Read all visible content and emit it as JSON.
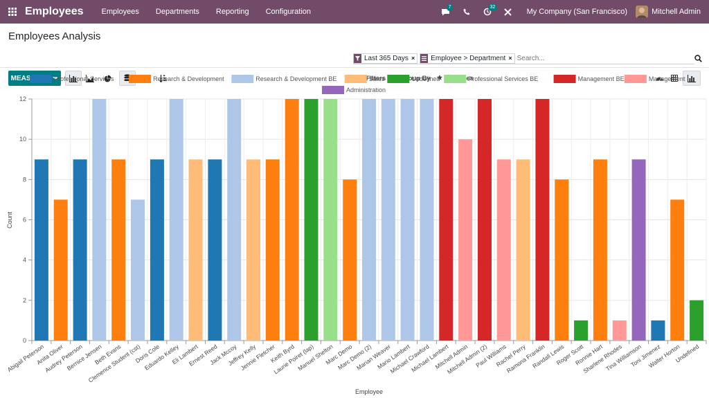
{
  "navbar": {
    "brand": "Employees",
    "menus": [
      "Employees",
      "Departments",
      "Reporting",
      "Configuration"
    ],
    "chat_badge": "7",
    "activity_badge": "32",
    "company": "My Company (San Francisco)",
    "user": "Mitchell Admin"
  },
  "control": {
    "title": "Employees Analysis",
    "facets": [
      "Last 365 Days",
      "Employee > Department"
    ],
    "search_placeholder": "Search...",
    "measures_label": "MEASURES",
    "filters_label": "Filters",
    "groupby_label": "Group By",
    "favorites_label": "Favorites"
  },
  "colors": {
    "brand": "#714b67",
    "accent": "#017e84"
  },
  "chart_data": {
    "type": "bar",
    "xlabel": "Employee",
    "ylabel": "Count",
    "ylim": [
      0,
      12
    ],
    "yticks": [
      0,
      2,
      4,
      6,
      8,
      10,
      12
    ],
    "legend": [
      {
        "name": "Professional Services",
        "color": "#1f77b4"
      },
      {
        "name": "Research & Development",
        "color": "#ff7f0e"
      },
      {
        "name": "Research & Development BE",
        "color": "#aec7e8"
      },
      {
        "name": "Sales",
        "color": "#ffbb78"
      },
      {
        "name": "Undefined",
        "color": "#2ca02c"
      },
      {
        "name": "Professional Services BE",
        "color": "#98df8a"
      },
      {
        "name": "Management BE",
        "color": "#d62728"
      },
      {
        "name": "Management",
        "color": "#ff9896"
      },
      {
        "name": "Administration",
        "color": "#9467bd"
      }
    ],
    "categories": [
      "Abigail Peterson",
      "Anita Oliver",
      "Audrey Peterson",
      "Bernice Jensen",
      "Beth Evans",
      "Clemence Student (cst)",
      "Doris Cole",
      "Eduardo Kelley",
      "Eli Lambert",
      "Ernest Reed",
      "Jack Mccoy",
      "Jeffrey Kelly",
      "Jennie Fletcher",
      "Keith Byrd",
      "Laurie Poiret (lap)",
      "Manuel Shelton",
      "Marc Demo",
      "Marc Demo (2)",
      "Marian Weaver",
      "Mario Lambert",
      "Michael Crawford",
      "Michael Lambert",
      "Mitchell Admin",
      "Mitchell Admin (2)",
      "Paul Williams",
      "Rachel Perry",
      "Ramona Franklin",
      "Randall Lewis",
      "Roger Scott",
      "Ronnie Hart",
      "Sharlene Rhodes",
      "Tina Williamson",
      "Toni Jimenez",
      "Walter Horton",
      "Undefined"
    ],
    "values": [
      9,
      7,
      9,
      12,
      9,
      7,
      9,
      12,
      9,
      9,
      12,
      9,
      9,
      12,
      12,
      12,
      8,
      12,
      12,
      12,
      12,
      12,
      10,
      12,
      9,
      9,
      12,
      8,
      1,
      9,
      1,
      9,
      1,
      7,
      2
    ],
    "series_of_bar": [
      "Professional Services",
      "Research & Development",
      "Professional Services",
      "Research & Development BE",
      "Research & Development",
      "Research & Development BE",
      "Professional Services",
      "Research & Development BE",
      "Sales",
      "Professional Services",
      "Research & Development BE",
      "Sales",
      "Research & Development",
      "Research & Development",
      "Undefined",
      "Professional Services BE",
      "Research & Development",
      "Research & Development BE",
      "Research & Development BE",
      "Research & Development BE",
      "Research & Development BE",
      "Management BE",
      "Management",
      "Management BE",
      "Management",
      "Sales",
      "Management BE",
      "Research & Development",
      "Undefined",
      "Research & Development",
      "Management",
      "Administration",
      "Professional Services",
      "Research & Development",
      "Undefined"
    ]
  }
}
